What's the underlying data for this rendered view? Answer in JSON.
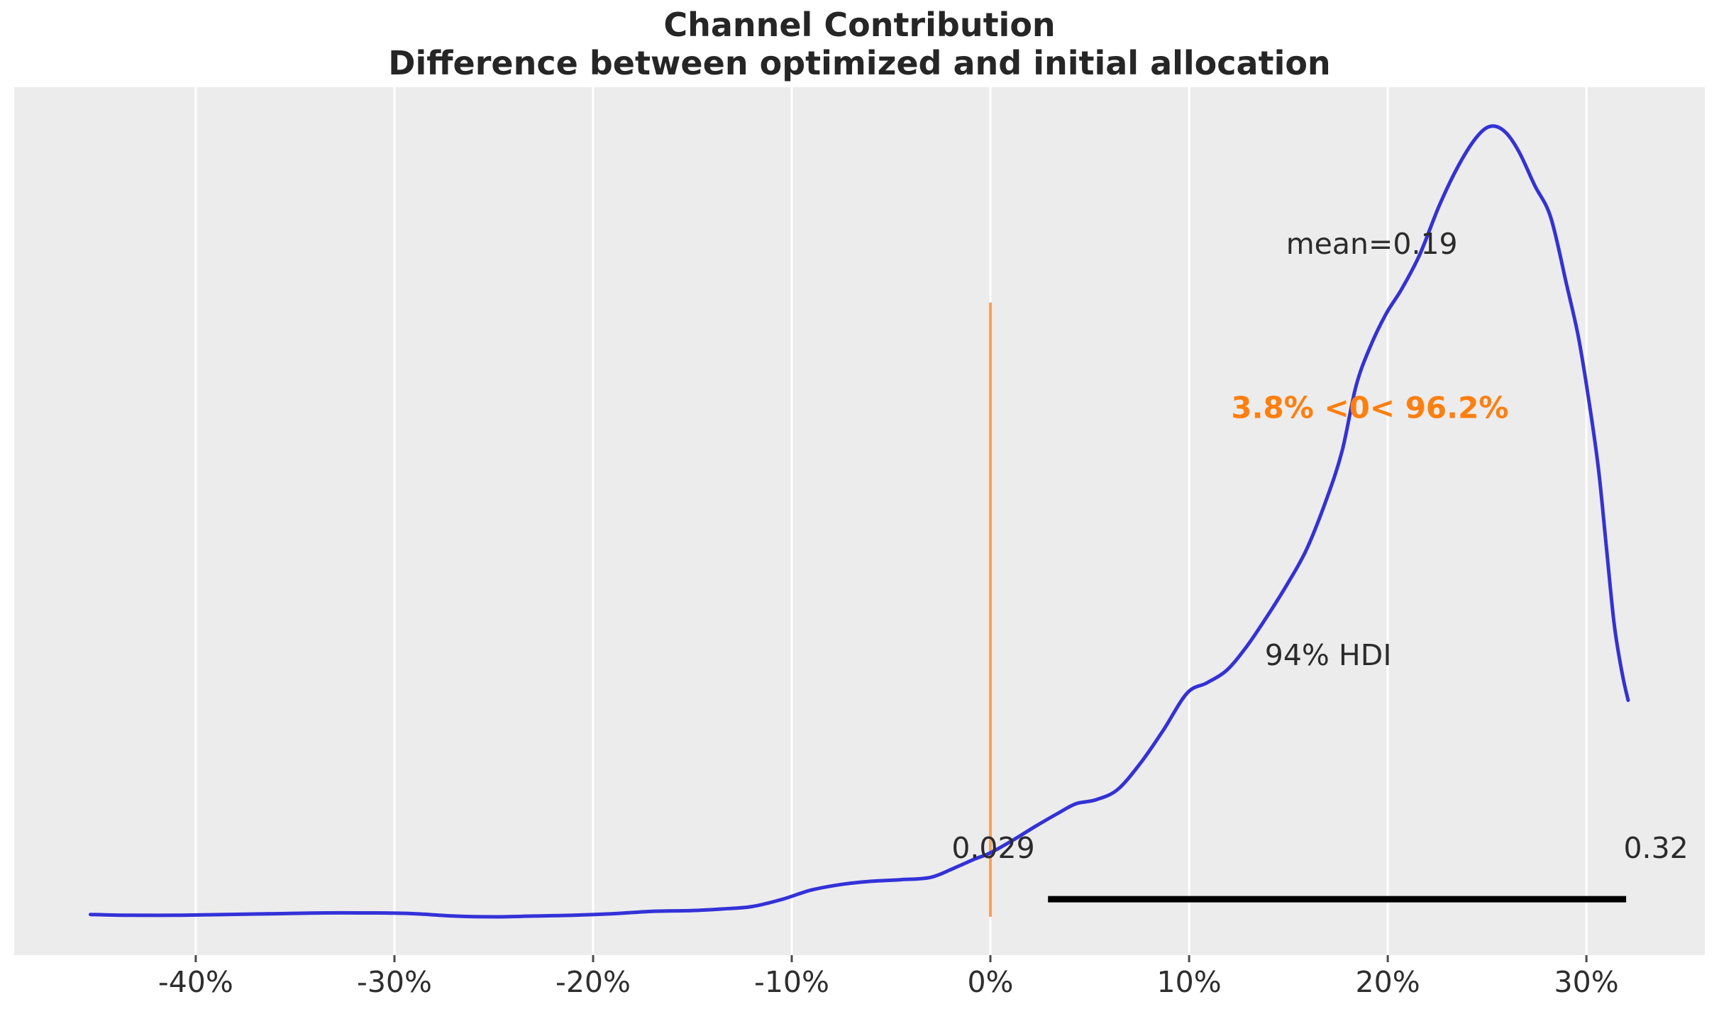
{
  "title": {
    "line1": "Channel Contribution",
    "line2": "Difference between optimized and initial allocation"
  },
  "colors": {
    "background": "#ffffff",
    "panel": "#ececec",
    "grid": "#ffffff",
    "curve": "#3232d8",
    "ref_line": "#f5a35c",
    "ref_text": "#ff7f0e",
    "hdi_bar": "#000000",
    "tick_mark": "#4a4a4a",
    "annotation_text": "#2b2b2b",
    "title_text": "#262626"
  },
  "chart_data": {
    "type": "line",
    "subtype": "kde-posterior-density",
    "title": "Channel Contribution\nDifference between optimized and initial allocation",
    "xlabel": "",
    "ylabel": "",
    "grid": "vertical-white-gridlines",
    "legend_position": "none",
    "x_units": "percent",
    "x_tick_values": [
      -40,
      -30,
      -20,
      -10,
      0,
      10,
      20,
      30
    ],
    "x_tick_labels": [
      "-40%",
      "-30%",
      "-20%",
      "-10%",
      "0%",
      "10%",
      "20%",
      "30%"
    ],
    "x_range": [
      -49.14,
      35.96
    ],
    "y_range": [
      -0.0484,
      1.0493
    ],
    "mean": 0.19,
    "hdi": {
      "prob": "94%",
      "lo": 0.029,
      "hi": 0.32,
      "y": 0.0224
    },
    "ref_value": {
      "x": 0,
      "y_top": 0.777,
      "below_pct": "3.8%",
      "above_pct": "96.2%"
    },
    "series": [
      {
        "name": "posterior-density",
        "x": [
          -45.3,
          -43.5,
          -41,
          -38.5,
          -36,
          -33.5,
          -31,
          -29,
          -27,
          -25,
          -23,
          -21,
          -19,
          -17,
          -15,
          -13.5,
          -12,
          -10.5,
          -9,
          -7.5,
          -6,
          -4.5,
          -3,
          -1.8,
          -0.8,
          0,
          1.2,
          2.3,
          3.4,
          4.3,
          5.3,
          6.4,
          7.6,
          8.7,
          9.9,
          10.9,
          11.9,
          12.9,
          13.9,
          14.9,
          15.9,
          16.9,
          17.7,
          18.4,
          19.1,
          19.9,
          20.7,
          21.6,
          22.6,
          23.6,
          24.5,
          25.2,
          25.9,
          26.6,
          27.4,
          28.2,
          29,
          29.6,
          30.1,
          30.6,
          31,
          31.4,
          31.8,
          32.1
        ],
        "y": [
          0.003,
          0.002,
          0.002,
          0.003,
          0.004,
          0.005,
          0.005,
          0.004,
          0.001,
          0,
          0.001,
          0.002,
          0.004,
          0.007,
          0.008,
          0.01,
          0.013,
          0.022,
          0.034,
          0.041,
          0.045,
          0.047,
          0.05,
          0.062,
          0.073,
          0.081,
          0.098,
          0.115,
          0.131,
          0.143,
          0.148,
          0.161,
          0.196,
          0.236,
          0.283,
          0.296,
          0.312,
          0.342,
          0.379,
          0.419,
          0.464,
          0.527,
          0.589,
          0.671,
          0.72,
          0.762,
          0.794,
          0.837,
          0.9,
          0.952,
          0.987,
          1,
          0.993,
          0.968,
          0.925,
          0.885,
          0.8,
          0.733,
          0.657,
          0.568,
          0.469,
          0.37,
          0.308,
          0.274
        ]
      }
    ],
    "annotations": {
      "mean": {
        "text": "mean=0.19",
        "x": 19.2,
        "y": 0.851
      },
      "prob": {
        "text": "3.8% <0< 96.2%",
        "x": 19.1,
        "y": 0.644
      },
      "hdi": {
        "text": "94% HDI",
        "x": 17.0,
        "y": 0.331
      },
      "hdi_lo": {
        "text": "0.029",
        "x": 0.14,
        "y": 0.087
      },
      "hdi_hi": {
        "text": "0.32",
        "x": 33.5,
        "y": 0.087
      }
    }
  }
}
